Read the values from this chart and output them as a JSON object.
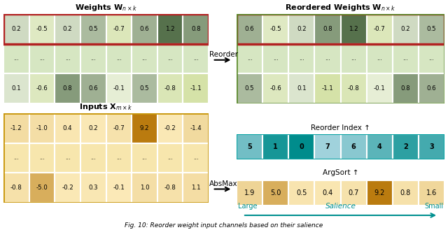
{
  "weights_title": "Weights $\\mathbf{W}_{n\\times k}$",
  "reordered_weights_title": "Reordered Weights $\\mathbf{W}_{n\\times k}$",
  "inputs_title": "Inputs $\\mathbf{X}_{m\\times k}$",
  "weights_row1": [
    0.2,
    -0.5,
    0.2,
    0.5,
    -0.7,
    0.6,
    1.2,
    0.8
  ],
  "weights_row3": [
    0.1,
    -0.6,
    0.8,
    0.6,
    -0.1,
    0.5,
    -0.8,
    -1.1
  ],
  "reordered_weights_row1": [
    0.6,
    -0.5,
    0.2,
    0.8,
    1.2,
    -0.7,
    0.2,
    0.5
  ],
  "reordered_weights_row3": [
    0.5,
    -0.6,
    0.1,
    -1.1,
    -0.8,
    -0.1,
    0.8,
    0.6
  ],
  "inputs_row1": [
    -1.2,
    -1.0,
    0.4,
    0.2,
    -0.7,
    9.2,
    -0.2,
    -1.4
  ],
  "inputs_row3": [
    -0.8,
    -5.0,
    -0.2,
    0.3,
    -0.1,
    1.0,
    -0.8,
    1.1
  ],
  "absmax_row": [
    1.9,
    5.0,
    0.5,
    0.4,
    0.7,
    9.2,
    0.8,
    1.6
  ],
  "reorder_index": [
    5,
    1,
    0,
    7,
    6,
    4,
    2,
    3
  ],
  "reorder_label": "Reorder",
  "absmax_label": "AbsMax",
  "argsort_label": "ArgSort",
  "reorder_index_label": "Reorder Index",
  "salience_label": "Salience",
  "large_label": "Large",
  "small_label": "Small",
  "caption": "Fig. 10: Reorder weight input channels based on their salience",
  "red_border": "#b22222",
  "olive_border": "#5a8a2a",
  "input_border": "#c8960a",
  "teal_color": "#009090"
}
